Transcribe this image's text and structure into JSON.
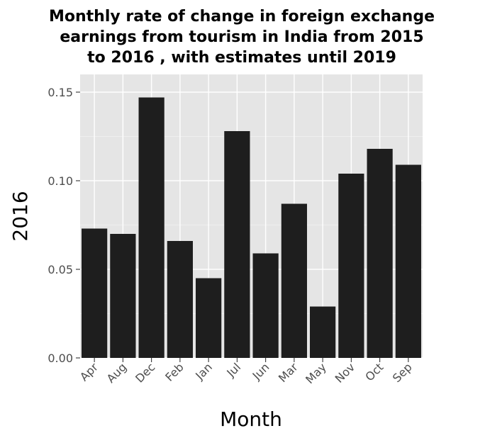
{
  "chart_data": {
    "type": "bar",
    "title_lines": [
      "Monthly rate of change in foreign exchange",
      "earnings from tourism in India from 2015",
      "to 2016 , with estimates until 2019"
    ],
    "xlabel": "Month",
    "ylabel": "2016",
    "categories": [
      "Apr",
      "Aug",
      "Dec",
      "Feb",
      "Jan",
      "Jul",
      "Jun",
      "Mar",
      "May",
      "Nov",
      "Oct",
      "Sep"
    ],
    "values": [
      0.073,
      0.07,
      0.147,
      0.066,
      0.045,
      0.128,
      0.059,
      0.087,
      0.029,
      0.104,
      0.118,
      0.109
    ],
    "ylim": [
      0,
      0.16
    ],
    "yticks": [
      0.0,
      0.05,
      0.1,
      0.15
    ],
    "ytick_labels": [
      "0.00",
      "0.05",
      "0.10",
      "0.15"
    ],
    "grid": true,
    "legend": "none",
    "colors": {
      "bar": "#1e1e1e",
      "panel": "#e5e5e5"
    }
  }
}
